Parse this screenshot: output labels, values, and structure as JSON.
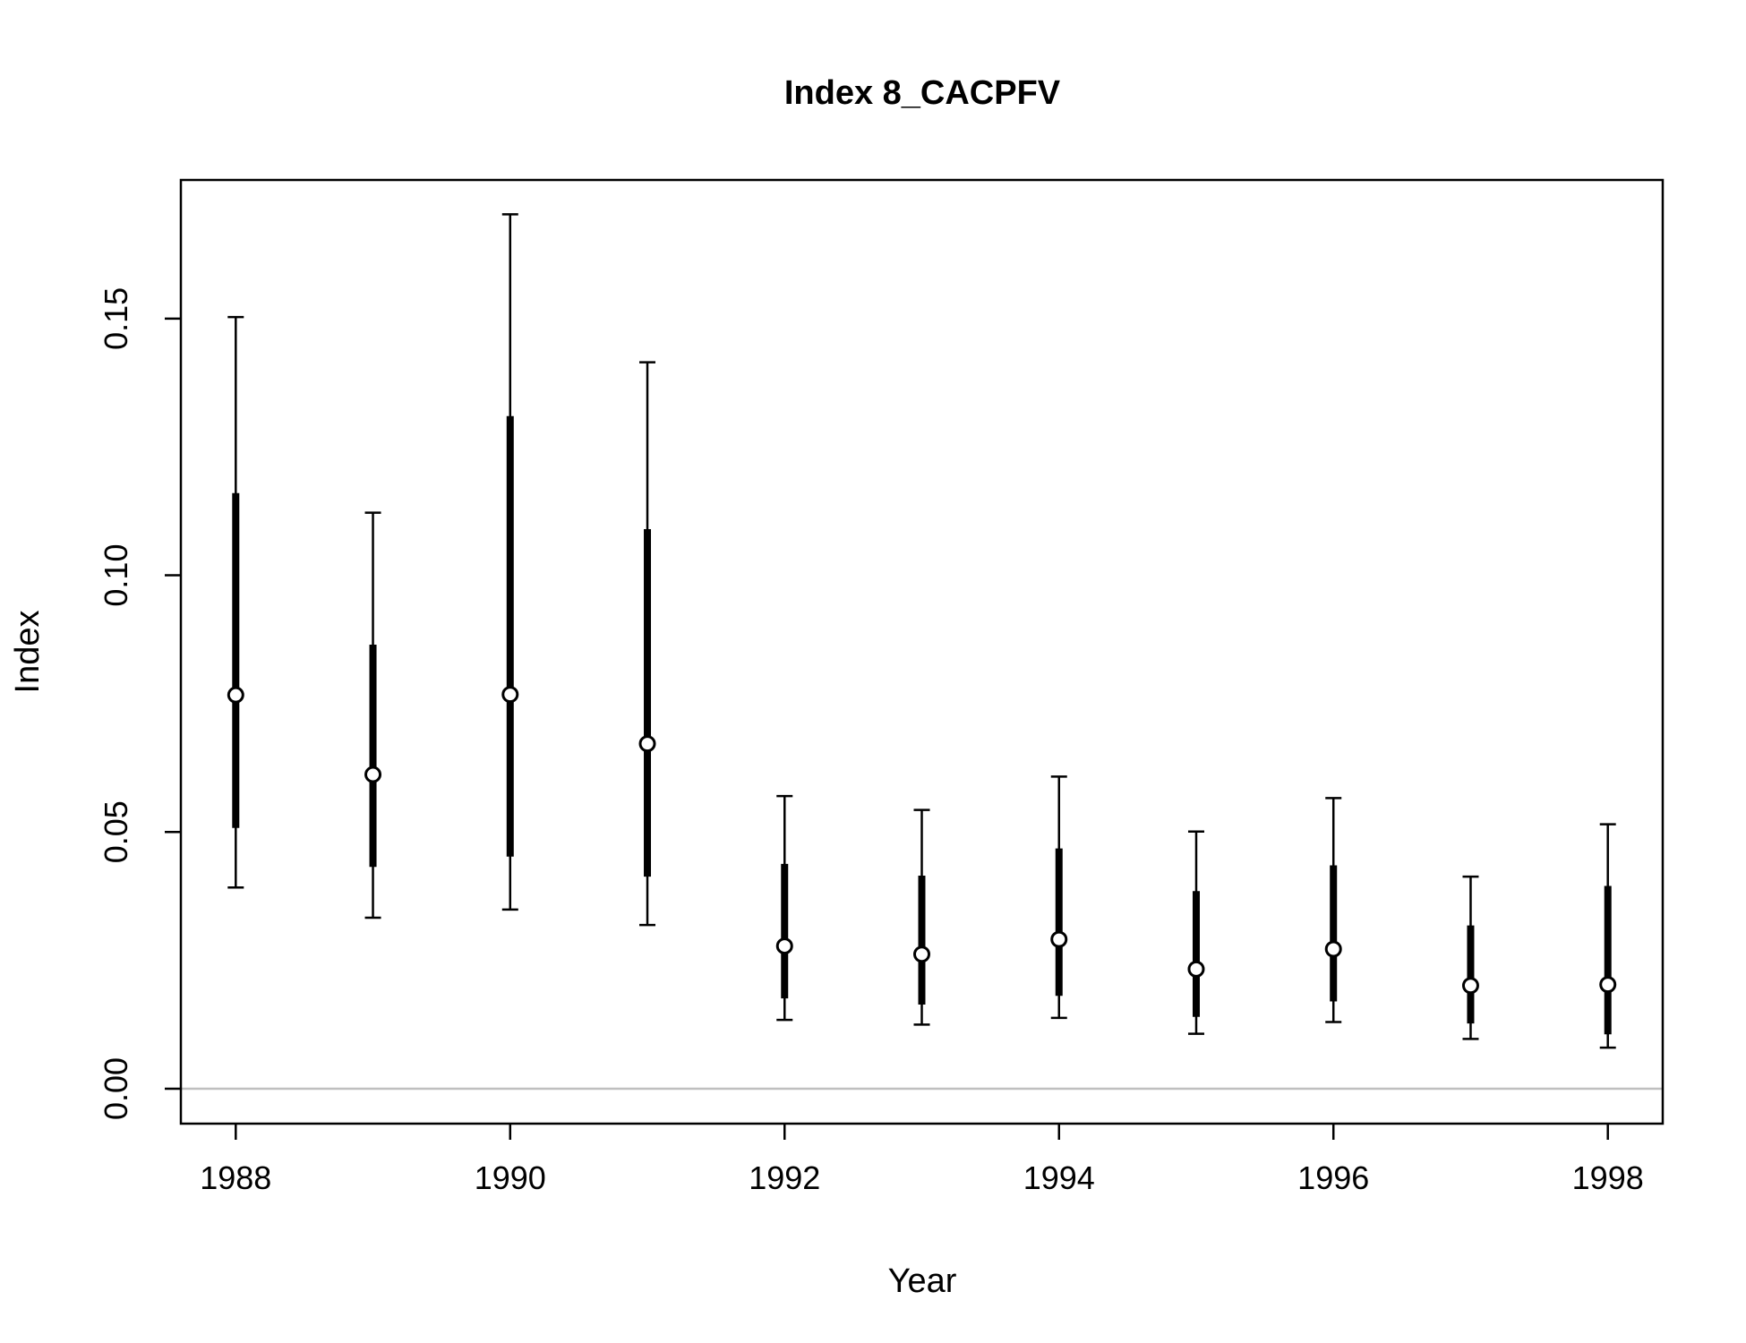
{
  "chart_data": {
    "type": "scatter",
    "title": "Index 8_CACPFV",
    "xlabel": "Year",
    "ylabel": "Index",
    "xlim": [
      1987.6,
      1998.4
    ],
    "ylim": [
      -0.0068,
      0.177
    ],
    "x_ticks": [
      1988,
      1990,
      1992,
      1994,
      1996,
      1998
    ],
    "y_ticks": [
      0.0,
      0.05,
      0.1,
      0.15
    ],
    "y_tick_labels": [
      "0.00",
      "0.05",
      "0.10",
      "0.15"
    ],
    "reference_line": 0,
    "series": [
      {
        "x": [
          1988,
          1989,
          1990,
          1991,
          1992,
          1993,
          1994,
          1995,
          1996,
          1997,
          1998
        ],
        "y": [
          0.0767,
          0.0612,
          0.0768,
          0.0672,
          0.0278,
          0.0262,
          0.0291,
          0.0233,
          0.0272,
          0.0201,
          0.0203
        ],
        "inner_low": [
          0.0508,
          0.0432,
          0.0452,
          0.0413,
          0.0176,
          0.0164,
          0.0181,
          0.014,
          0.017,
          0.0127,
          0.0106
        ],
        "inner_high": [
          0.116,
          0.0865,
          0.131,
          0.109,
          0.0438,
          0.0415,
          0.0468,
          0.0385,
          0.0435,
          0.0318,
          0.0395
        ],
        "outer_low": [
          0.0392,
          0.0333,
          0.0349,
          0.0319,
          0.0134,
          0.0125,
          0.0138,
          0.0107,
          0.013,
          0.0097,
          0.008
        ],
        "outer_high": [
          0.1503,
          0.1122,
          0.1703,
          0.1415,
          0.057,
          0.0543,
          0.0608,
          0.0501,
          0.0566,
          0.0413,
          0.0515
        ]
      }
    ],
    "colors": {
      "marks": "#000000",
      "point_fill": "#ffffff",
      "reference_line": "#bfbfbf"
    }
  }
}
